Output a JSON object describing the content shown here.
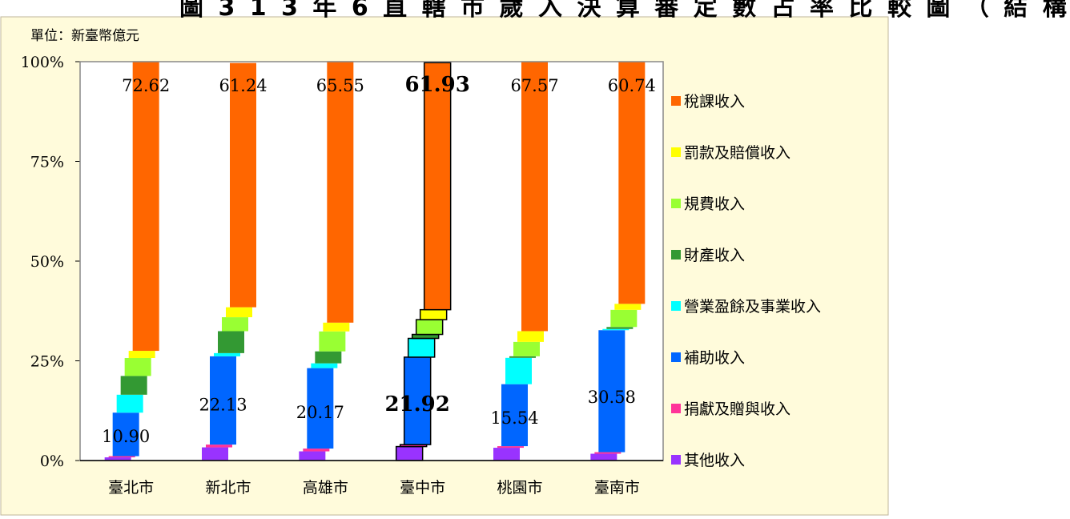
{
  "title_fragment": "圖 3 1 3 年 6 直 轄 市 歲 入 決 算 審 定 數 占 率 比 較 圖 （ 結 構",
  "unit_label": "單位：新臺幣億元",
  "colors": {
    "background": "#fffbdb",
    "border": "#bfb69a",
    "grid": "#888888"
  },
  "chart_data": {
    "type": "bar",
    "stacked": true,
    "percent_axis": true,
    "categories": [
      "臺北市",
      "新北市",
      "高雄市",
      "臺中市",
      "桃園市",
      "臺南市"
    ],
    "yticks": [
      "0%",
      "25%",
      "50%",
      "75%",
      "100%"
    ],
    "ylim": [
      0,
      100
    ],
    "highlight_category": "臺中市",
    "series": [
      {
        "name": "其他收入",
        "color": "#9933ff",
        "values": [
          0.8,
          3.3,
          2.3,
          3.5,
          3.2,
          1.7
        ]
      },
      {
        "name": "捐獻及贈與收入",
        "color": "#ff3399",
        "values": [
          0.3,
          0.7,
          0.7,
          0.5,
          0.4,
          0.4
        ]
      },
      {
        "name": "補助收入",
        "color": "#0066ff",
        "values": [
          10.9,
          22.13,
          20.17,
          21.92,
          15.54,
          30.58
        ]
      },
      {
        "name": "營業盈餘及事業收入",
        "color": "#00ffff",
        "values": [
          4.5,
          0.8,
          1.2,
          4.7,
          6.6,
          0.3
        ]
      },
      {
        "name": "財產收入",
        "color": "#339933",
        "values": [
          4.7,
          5.5,
          3.0,
          1.0,
          0.4,
          0.5
        ]
      },
      {
        "name": "規費收入",
        "color": "#99ff33",
        "values": [
          4.5,
          3.5,
          5.0,
          3.7,
          3.6,
          4.3
        ]
      },
      {
        "name": "罰款及賠償收入",
        "color": "#ffff00",
        "values": [
          1.8,
          2.5,
          2.2,
          2.5,
          2.7,
          1.5
        ]
      },
      {
        "name": "稅課收入",
        "color": "#ff6600",
        "values": [
          72.62,
          61.24,
          65.55,
          61.93,
          67.57,
          60.74
        ]
      }
    ],
    "data_labels": {
      "補助收入": [
        "10.90",
        "22.13",
        "20.17",
        "21.92",
        "15.54",
        "30.58"
      ],
      "稅課收入": [
        "72.62",
        "61.24",
        "65.55",
        "61.93",
        "67.57",
        "60.74"
      ]
    },
    "legend_order": [
      "稅課收入",
      "罰款及賠償收入",
      "規費收入",
      "財產收入",
      "營業盈餘及事業收入",
      "補助收入",
      "捐獻及贈與收入",
      "其他收入"
    ],
    "legend_position": "right"
  }
}
